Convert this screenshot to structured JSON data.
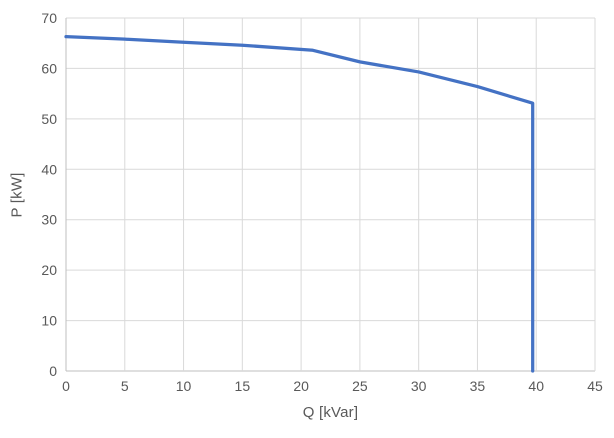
{
  "chart_data": {
    "type": "line",
    "title": "",
    "xlabel": "Q [kVar]",
    "ylabel": "P [kW]",
    "xlim": [
      0,
      45
    ],
    "ylim": [
      0,
      70
    ],
    "xticks": [
      0,
      5,
      10,
      15,
      20,
      25,
      30,
      35,
      40,
      45
    ],
    "yticks": [
      0,
      10,
      20,
      30,
      40,
      50,
      60,
      70
    ],
    "grid": true,
    "legend": false,
    "series": [
      {
        "points": [
          [
            0,
            66.3
          ],
          [
            5,
            65.8
          ],
          [
            10,
            65.2
          ],
          [
            15,
            64.6
          ],
          [
            21,
            63.6
          ],
          [
            25,
            61.3
          ],
          [
            30,
            59.3
          ],
          [
            35,
            56.4
          ],
          [
            39.7,
            53.1
          ],
          [
            39.7,
            0
          ]
        ],
        "color": "#4472C4",
        "width": 3.25
      }
    ],
    "colors": {
      "gridline": "#D9D9D9",
      "axis_line": "#BFBFBF",
      "tick_text": "#595959",
      "title_text": "#595959",
      "background": "#FFFFFF"
    }
  }
}
